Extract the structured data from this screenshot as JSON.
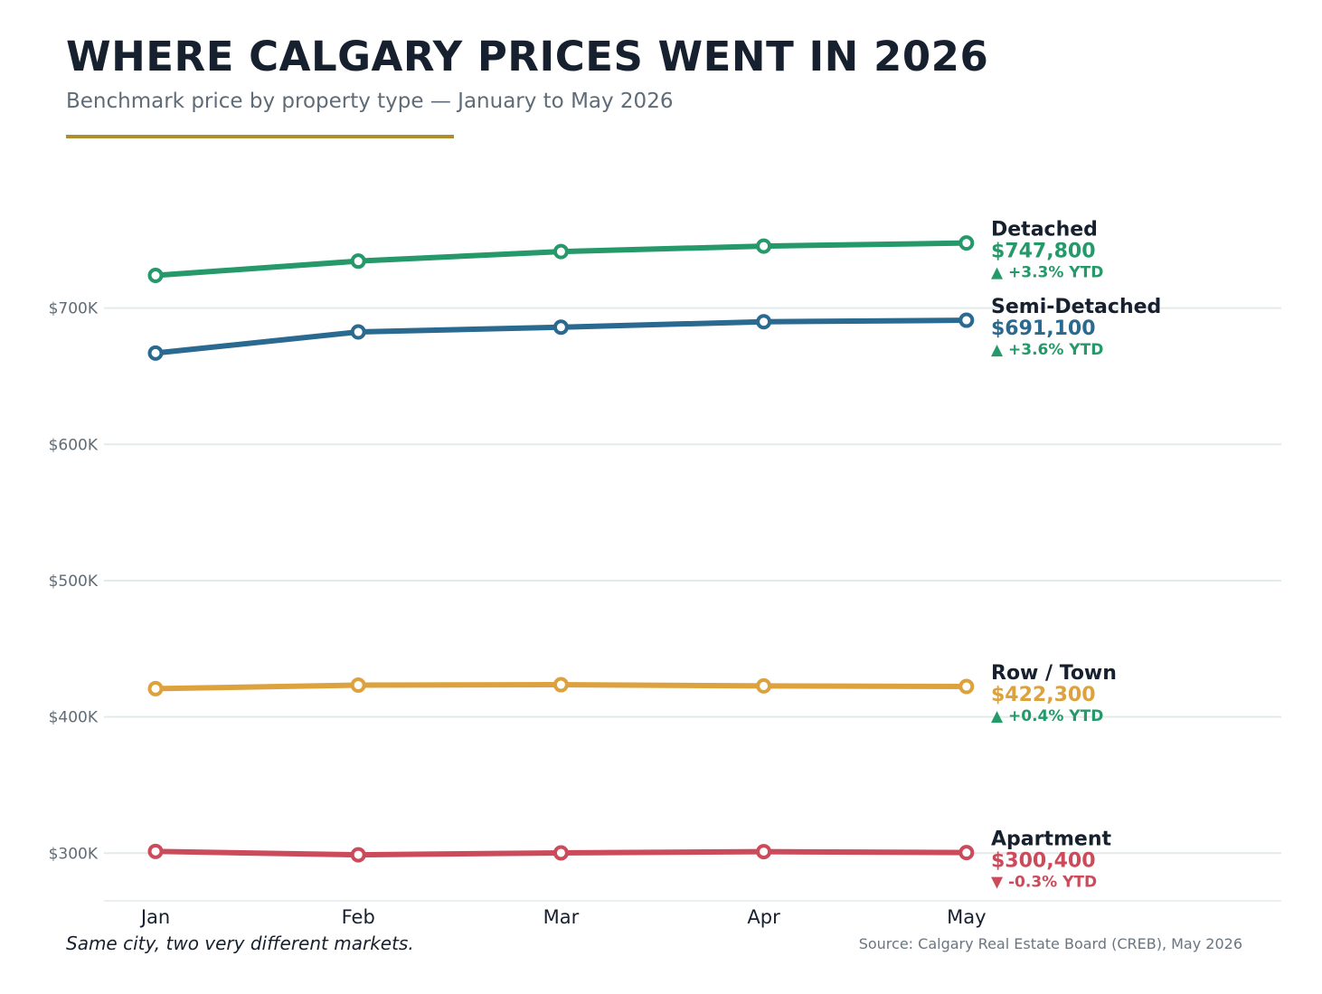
{
  "header": {
    "title": "WHERE CALGARY PRICES WENT IN 2026",
    "subtitle": "Benchmark price by property type  —  January to May 2026"
  },
  "footer": {
    "note": "Same city, two very different markets.",
    "source": "Source: Calgary Real Estate Board (CREB), May 2026"
  },
  "colors": {
    "accent_rule": "#b08d2c",
    "grid": "#e3eaea",
    "tick_text": "#5f6b76",
    "label_text": "#17202e",
    "up": "#25996a",
    "down": "#cc4b5b"
  },
  "chart_data": {
    "type": "line",
    "categories": [
      "Jan",
      "Feb",
      "Mar",
      "Apr",
      "May"
    ],
    "ylim": [
      265000,
      800000
    ],
    "yticks": [
      300000,
      400000,
      500000,
      600000,
      700000
    ],
    "ytick_labels": [
      "$300K",
      "$400K",
      "$500K",
      "$600K",
      "$700K"
    ],
    "grid": true,
    "legend": "direct labels at line ends",
    "series": [
      {
        "name": "Detached",
        "color": "#25996a",
        "values": [
          724000,
          734500,
          741500,
          745500,
          747800
        ],
        "end_value_label": "$747,800",
        "ytd_label": "▲ +3.3% YTD",
        "ytd_direction": "up"
      },
      {
        "name": "Semi-Detached",
        "color": "#2a6990",
        "values": [
          667000,
          682500,
          686000,
          690000,
          691100
        ],
        "end_value_label": "$691,100",
        "ytd_label": "▲ +3.6% YTD",
        "ytd_direction": "up"
      },
      {
        "name": "Row / Town",
        "color": "#dda23d",
        "values": [
          420700,
          423300,
          423600,
          422700,
          422300
        ],
        "end_value_label": "$422,300",
        "ytd_label": "▲ +0.4% YTD",
        "ytd_direction": "up"
      },
      {
        "name": "Apartment",
        "color": "#cc4b5b",
        "values": [
          301300,
          298800,
          300200,
          301100,
          300400
        ],
        "end_value_label": "$300,400",
        "ytd_label": "▼ -0.3% YTD",
        "ytd_direction": "down"
      }
    ]
  }
}
